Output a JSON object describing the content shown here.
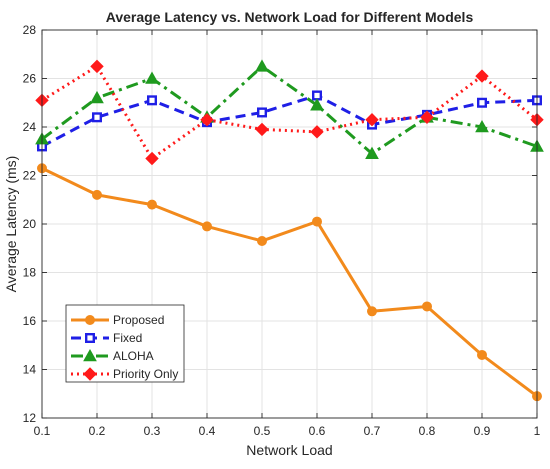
{
  "chart_data": {
    "type": "line",
    "title": "Average Latency vs. Network Load for Different Models",
    "xlabel": "Network Load",
    "ylabel": "Average Latency (ms)",
    "x": [
      0.1,
      0.2,
      0.3,
      0.4,
      0.5,
      0.6,
      0.7,
      0.8,
      0.9,
      1
    ],
    "xticks": [
      "0.1",
      "0.2",
      "0.3",
      "0.4",
      "0.5",
      "0.6",
      "0.7",
      "0.8",
      "0.9",
      "1"
    ],
    "yticks": [
      "12",
      "14",
      "16",
      "18",
      "20",
      "22",
      "24",
      "26",
      "28"
    ],
    "xlim": [
      0.1,
      1
    ],
    "ylim": [
      12,
      28
    ],
    "grid": true,
    "legend_position": "bottom-left",
    "series": [
      {
        "name": "Proposed",
        "color": "#f28a1c",
        "line_style": "solid",
        "marker": "circle",
        "values": [
          22.3,
          21.2,
          20.8,
          19.9,
          19.3,
          20.1,
          16.4,
          16.6,
          14.6,
          12.9
        ]
      },
      {
        "name": "Fixed",
        "color": "#1f1fe6",
        "line_style": "dashed",
        "marker": "square",
        "values": [
          23.2,
          24.4,
          25.1,
          24.2,
          24.6,
          25.3,
          24.1,
          24.5,
          25.0,
          25.1
        ]
      },
      {
        "name": "ALOHA",
        "color": "#1f9a1f",
        "line_style": "dashdot",
        "marker": "triangle",
        "values": [
          23.5,
          25.2,
          26.0,
          24.4,
          26.5,
          24.9,
          22.9,
          24.4,
          24.0,
          23.2
        ]
      },
      {
        "name": "Priority Only",
        "color": "#ff1a1a",
        "line_style": "dotted",
        "marker": "diamond",
        "values": [
          25.1,
          26.5,
          22.7,
          24.3,
          23.9,
          23.8,
          24.3,
          24.4,
          26.1,
          24.3
        ]
      }
    ]
  }
}
